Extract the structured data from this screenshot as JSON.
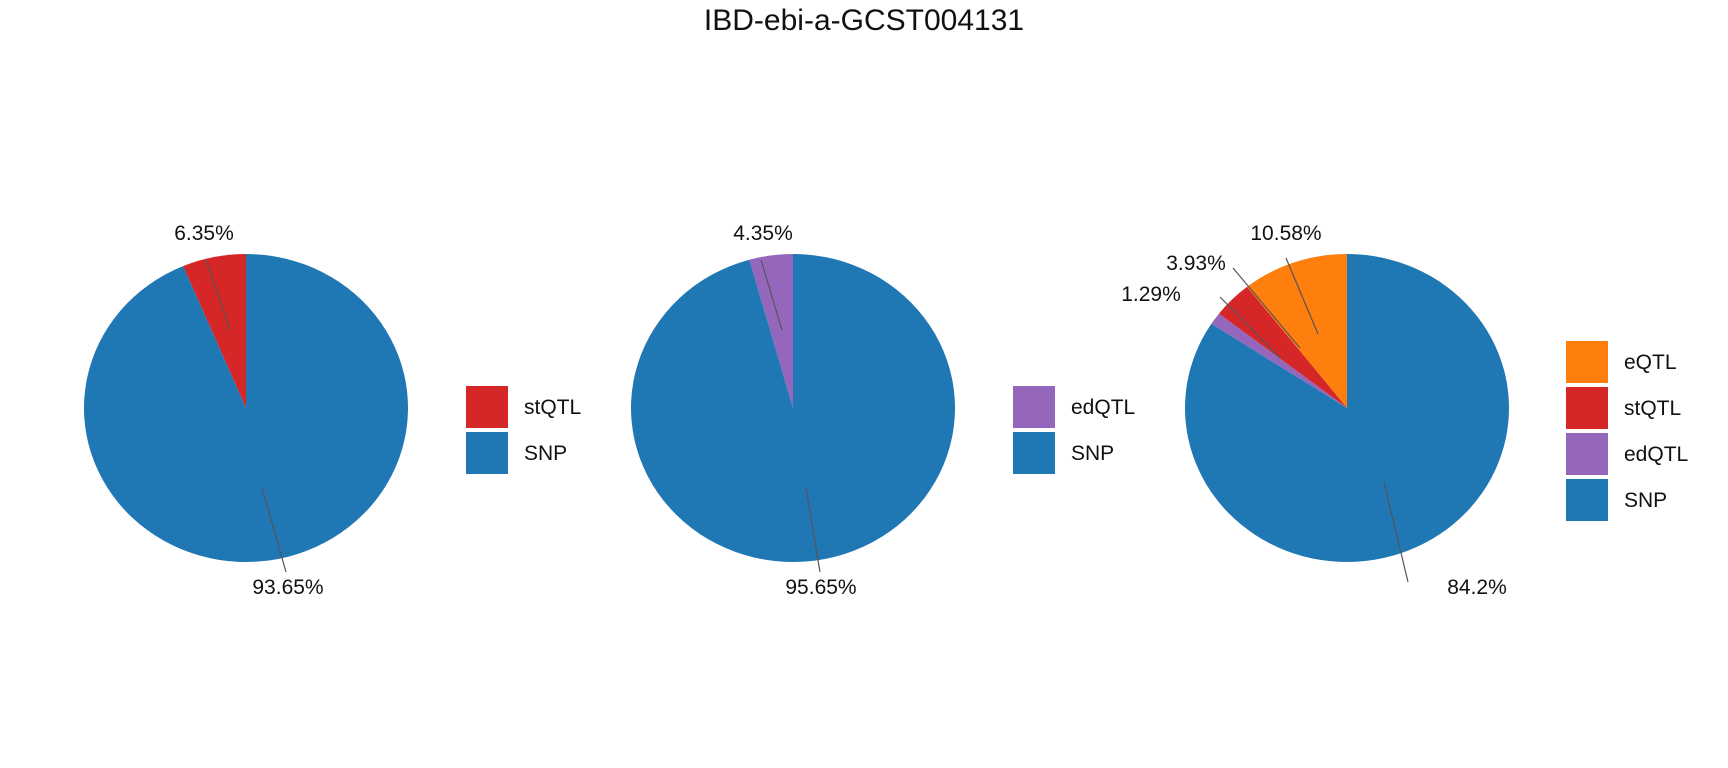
{
  "title": "IBD-ebi-a-GCST004131",
  "chart_data": [
    {
      "type": "pie",
      "slices": [
        {
          "label": "stQTL",
          "value": 6.35,
          "color": "#d62728",
          "text": "6.35%"
        },
        {
          "label": "SNP",
          "value": 93.65,
          "color": "#1f77b4",
          "text": "93.65%"
        }
      ],
      "legend": [
        "stQTL",
        "SNP"
      ],
      "legend_position": "right"
    },
    {
      "type": "pie",
      "slices": [
        {
          "label": "edQTL",
          "value": 4.35,
          "color": "#9467bd",
          "text": "4.35%"
        },
        {
          "label": "SNP",
          "value": 95.65,
          "color": "#1f77b4",
          "text": "95.65%"
        }
      ],
      "legend": [
        "edQTL",
        "SNP"
      ],
      "legend_position": "right"
    },
    {
      "type": "pie",
      "slices": [
        {
          "label": "eQTL",
          "value": 10.58,
          "color": "#ff7f0e",
          "text": "10.58%"
        },
        {
          "label": "stQTL",
          "value": 3.93,
          "color": "#d62728",
          "text": "3.93%"
        },
        {
          "label": "edQTL",
          "value": 1.29,
          "color": "#9467bd",
          "text": "1.29%"
        },
        {
          "label": "SNP",
          "value": 84.2,
          "color": "#1f77b4",
          "text": "84.2%"
        }
      ],
      "legend": [
        "eQTL",
        "stQTL",
        "edQTL",
        "SNP"
      ],
      "legend_position": "right"
    }
  ]
}
